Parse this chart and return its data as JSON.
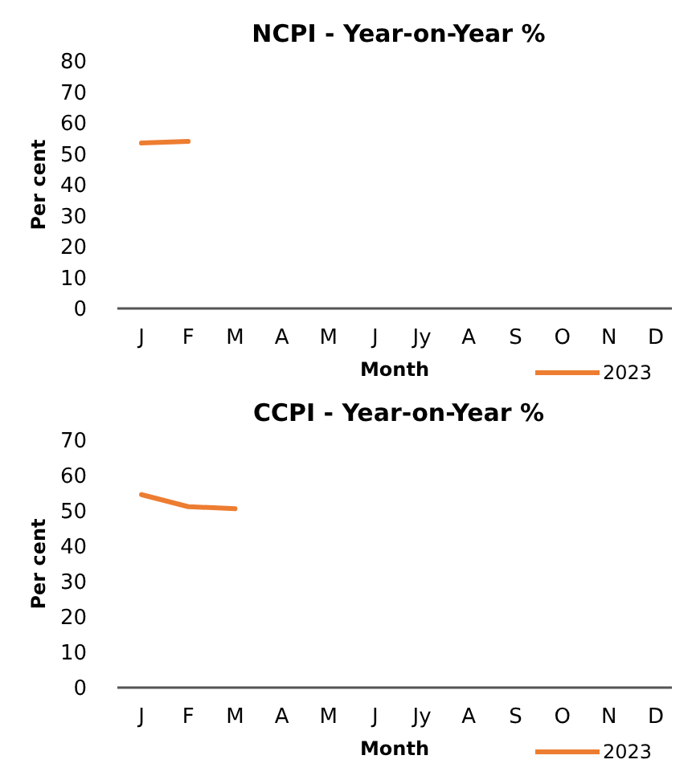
{
  "chart_data": [
    {
      "type": "line",
      "title": "NCPI -  Year-on-Year %",
      "xlabel": "Month",
      "ylabel": "Per cent",
      "categories": [
        "J",
        "F",
        "M",
        "A",
        "M",
        "J",
        "Jy",
        "A",
        "S",
        "O",
        "N",
        "D"
      ],
      "series": [
        {
          "name": "2023",
          "color": "#ed7d31",
          "values": [
            53.5,
            54.0,
            null,
            null,
            null,
            null,
            null,
            null,
            null,
            null,
            null,
            null
          ]
        }
      ],
      "ylim": [
        0,
        80
      ],
      "yticks": [
        0,
        10,
        20,
        30,
        40,
        50,
        60,
        70,
        80
      ],
      "legend": "bottom right",
      "grid": false
    },
    {
      "type": "line",
      "title": "CCPI - Year-on-Year %",
      "xlabel": "Month",
      "ylabel": "Per cent",
      "categories": [
        "J",
        "F",
        "M",
        "A",
        "M",
        "J",
        "Jy",
        "A",
        "S",
        "O",
        "N",
        "D"
      ],
      "series": [
        {
          "name": "2023",
          "color": "#ed7d31",
          "values": [
            54.6,
            51.2,
            50.6,
            null,
            null,
            null,
            null,
            null,
            null,
            null,
            null,
            null
          ]
        }
      ],
      "ylim": [
        0,
        70
      ],
      "yticks": [
        0,
        10,
        20,
        30,
        40,
        50,
        60,
        70
      ],
      "legend": "bottom right",
      "grid": false
    }
  ]
}
